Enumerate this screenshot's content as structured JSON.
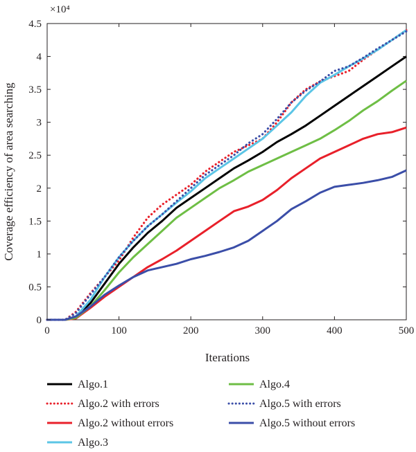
{
  "chart_data": {
    "type": "line",
    "title": "",
    "xlabel": "Iterations",
    "ylabel": "Coverage efficiency of area searching",
    "y_multiplier_label": "×10⁴",
    "xlim": [
      0,
      500
    ],
    "ylim": [
      0,
      4.5
    ],
    "x_ticks": [
      "0",
      "100",
      "200",
      "300",
      "400",
      "500"
    ],
    "y_ticks": [
      "0",
      "0.5",
      "1",
      "1.5",
      "2",
      "2.5",
      "3",
      "3.5",
      "4",
      "4.5"
    ],
    "grid": false,
    "legend_position": "bottom",
    "series": [
      {
        "name": "Algo.1",
        "color": "#000000",
        "style": "solid",
        "x": [
          0,
          25,
          40,
          60,
          80,
          100,
          120,
          140,
          160,
          180,
          200,
          220,
          240,
          260,
          280,
          300,
          320,
          340,
          360,
          380,
          400,
          420,
          440,
          460,
          480,
          500
        ],
        "y": [
          0,
          0,
          0.05,
          0.25,
          0.55,
          0.85,
          1.1,
          1.32,
          1.5,
          1.7,
          1.85,
          2.0,
          2.15,
          2.3,
          2.42,
          2.55,
          2.7,
          2.82,
          2.95,
          3.1,
          3.25,
          3.4,
          3.55,
          3.7,
          3.85,
          4.0
        ]
      },
      {
        "name": "Algo.2 with errors",
        "color": "#e8202a",
        "style": "dotted",
        "x": [
          0,
          25,
          40,
          60,
          80,
          100,
          120,
          140,
          160,
          180,
          200,
          220,
          240,
          260,
          280,
          300,
          320,
          340,
          360,
          380,
          400,
          420,
          440,
          460,
          480,
          500
        ],
        "y": [
          0,
          0,
          0.12,
          0.4,
          0.65,
          0.9,
          1.25,
          1.55,
          1.75,
          1.9,
          2.05,
          2.25,
          2.4,
          2.55,
          2.65,
          2.75,
          3.0,
          3.3,
          3.5,
          3.62,
          3.7,
          3.78,
          3.95,
          4.1,
          4.25,
          4.4
        ]
      },
      {
        "name": "Algo.2 without errors",
        "color": "#e8202a",
        "style": "solid",
        "x": [
          0,
          25,
          40,
          60,
          80,
          100,
          120,
          140,
          160,
          180,
          200,
          220,
          240,
          260,
          280,
          300,
          320,
          340,
          360,
          380,
          400,
          420,
          440,
          460,
          480,
          500
        ],
        "y": [
          0,
          0,
          0.02,
          0.18,
          0.35,
          0.5,
          0.65,
          0.8,
          0.92,
          1.05,
          1.2,
          1.35,
          1.5,
          1.65,
          1.72,
          1.82,
          1.97,
          2.15,
          2.3,
          2.45,
          2.55,
          2.65,
          2.75,
          2.82,
          2.85,
          2.92
        ]
      },
      {
        "name": "Algo.3",
        "color": "#5bc5e6",
        "style": "solid",
        "x": [
          0,
          25,
          40,
          60,
          80,
          100,
          120,
          140,
          160,
          180,
          200,
          220,
          240,
          260,
          280,
          300,
          320,
          340,
          360,
          380,
          400,
          420,
          440,
          460,
          480,
          500
        ],
        "y": [
          0,
          0,
          0.05,
          0.3,
          0.65,
          0.95,
          1.2,
          1.42,
          1.6,
          1.78,
          1.95,
          2.15,
          2.3,
          2.45,
          2.6,
          2.75,
          2.95,
          3.15,
          3.4,
          3.6,
          3.72,
          3.85,
          3.97,
          4.1,
          4.25,
          4.4
        ]
      },
      {
        "name": "Algo.4",
        "color": "#6ebe45",
        "style": "solid",
        "x": [
          0,
          25,
          40,
          60,
          80,
          100,
          120,
          140,
          160,
          180,
          200,
          220,
          240,
          260,
          280,
          300,
          320,
          340,
          360,
          380,
          400,
          420,
          440,
          460,
          480,
          500
        ],
        "y": [
          0,
          0,
          0.03,
          0.2,
          0.45,
          0.72,
          0.95,
          1.15,
          1.35,
          1.55,
          1.7,
          1.85,
          2.0,
          2.12,
          2.25,
          2.35,
          2.45,
          2.55,
          2.65,
          2.75,
          2.88,
          3.02,
          3.18,
          3.32,
          3.48,
          3.63
        ]
      },
      {
        "name": "Algo.5 with errors",
        "color": "#3b4ea8",
        "style": "dotted",
        "x": [
          0,
          25,
          40,
          60,
          80,
          100,
          120,
          140,
          160,
          180,
          200,
          220,
          240,
          260,
          280,
          300,
          320,
          340,
          360,
          380,
          400,
          420,
          440,
          460,
          480,
          500
        ],
        "y": [
          0,
          0,
          0.1,
          0.38,
          0.65,
          0.95,
          1.2,
          1.42,
          1.6,
          1.8,
          2.0,
          2.2,
          2.35,
          2.5,
          2.68,
          2.82,
          3.05,
          3.3,
          3.48,
          3.62,
          3.78,
          3.85,
          3.98,
          4.12,
          4.25,
          4.38
        ]
      },
      {
        "name": "Algo.5 without errors",
        "color": "#3b4ea8",
        "style": "solid",
        "x": [
          0,
          25,
          40,
          60,
          80,
          100,
          120,
          140,
          160,
          180,
          200,
          220,
          240,
          260,
          280,
          300,
          320,
          340,
          360,
          380,
          400,
          420,
          440,
          460,
          480,
          500
        ],
        "y": [
          0,
          0,
          0.05,
          0.2,
          0.38,
          0.52,
          0.65,
          0.75,
          0.8,
          0.85,
          0.92,
          0.97,
          1.03,
          1.1,
          1.2,
          1.35,
          1.5,
          1.68,
          1.8,
          1.93,
          2.02,
          2.05,
          2.08,
          2.12,
          2.17,
          2.27
        ]
      }
    ],
    "legend_order": [
      0,
      4,
      1,
      5,
      2,
      6,
      3
    ]
  }
}
